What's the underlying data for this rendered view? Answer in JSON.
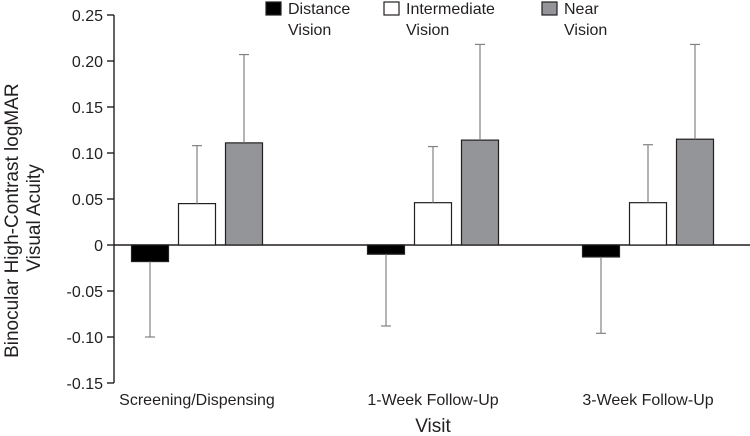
{
  "chart_data": {
    "type": "bar",
    "title": "",
    "xlabel": "Visit",
    "ylabel_lines": [
      "Binocular High-Contrast logMAR",
      "Visual Acuity"
    ],
    "ylim": [
      -0.15,
      0.25
    ],
    "yticks": [
      {
        "value": 0.25,
        "label": "0.25"
      },
      {
        "value": 0.2,
        "label": "0.20"
      },
      {
        "value": 0.15,
        "label": "0.15"
      },
      {
        "value": 0.1,
        "label": "0.10"
      },
      {
        "value": 0.05,
        "label": "0.05"
      },
      {
        "value": 0.0,
        "label": "0"
      },
      {
        "value": -0.05,
        "label": "-0.05"
      },
      {
        "value": -0.1,
        "label": "-0.10"
      },
      {
        "value": -0.15,
        "label": "-0.15"
      }
    ],
    "grid": false,
    "legend_position": "top",
    "categories": [
      "Screening/Dispensing",
      "1-Week Follow-Up",
      "3-Week Follow-Up"
    ],
    "series": [
      {
        "name": "Distance Vision",
        "legend_lines": [
          "Distance",
          "Vision"
        ],
        "color": "#000000",
        "values": [
          -0.018,
          -0.01,
          -0.013
        ],
        "error": [
          0.082,
          0.078,
          0.083
        ]
      },
      {
        "name": "Intermediate Vision",
        "legend_lines": [
          "Intermediate",
          "Vision"
        ],
        "color": "#ffffff",
        "values": [
          0.045,
          0.046,
          0.046
        ],
        "error": [
          0.063,
          0.061,
          0.063
        ]
      },
      {
        "name": "Near Vision",
        "legend_lines": [
          "Near",
          "Vision"
        ],
        "color": "#939598",
        "values": [
          0.111,
          0.114,
          0.115
        ],
        "error": [
          0.096,
          0.104,
          0.103
        ]
      }
    ]
  }
}
